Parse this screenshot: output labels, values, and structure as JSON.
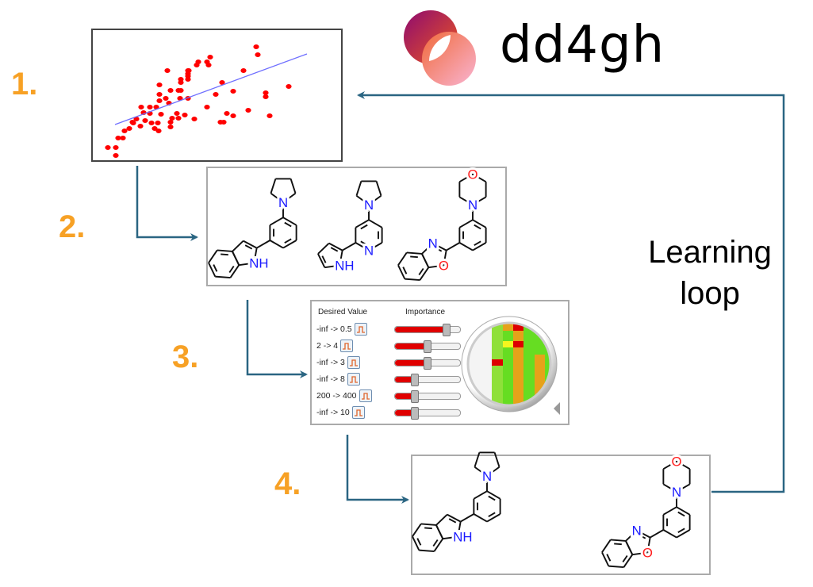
{
  "logo": {
    "text": "dd4gh",
    "colors": [
      "#9c0e6c",
      "#e8572a",
      "#f7a8c8"
    ]
  },
  "steps": [
    "1.",
    "2.",
    "3.",
    "4."
  ],
  "loop_label": [
    "Learning",
    "loop"
  ],
  "colors": {
    "step": "#F7A125",
    "arrow": "#2a6582",
    "points": "#ff0000",
    "fit_line": "#6f6fff",
    "nitrogen": "#1a1aff",
    "oxygen": "#ff2020"
  },
  "atoms": {
    "N": "N",
    "NH": "NH",
    "O": "O"
  },
  "scoring": {
    "header_desired": "Desired Value",
    "header_importance": "Importance",
    "rows": [
      {
        "range": "-inf -> 0.5",
        "importance": 0.79
      },
      {
        "range": "2 -> 4",
        "importance": 0.5
      },
      {
        "range": "-inf -> 3",
        "importance": 0.5
      },
      {
        "range": "-inf -> 8",
        "importance": 0.3
      },
      {
        "range": "200 -> 400",
        "importance": 0.3
      },
      {
        "range": "-inf -> 10",
        "importance": 0.3
      }
    ]
  }
}
